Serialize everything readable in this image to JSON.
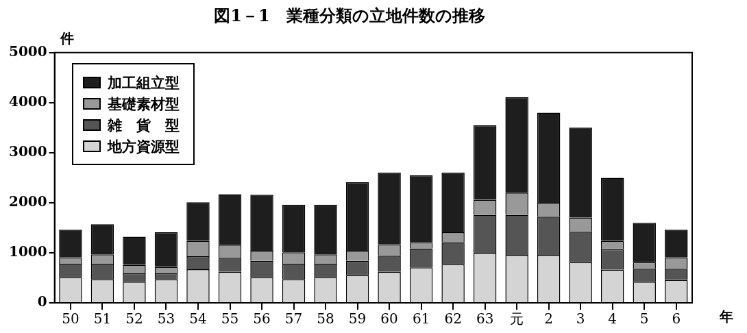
{
  "chart_data": {
    "type": "bar",
    "title": "図1－1　業種分類の立地件数の推移",
    "ylabel": "件",
    "xlabel": "年",
    "stacked": true,
    "legend": "top left",
    "categories": [
      "50",
      "51",
      "52",
      "53",
      "54",
      "55",
      "56",
      "57",
      "58",
      "59",
      "60",
      "61",
      "62",
      "63",
      "元",
      "2",
      "3",
      "4",
      "5",
      "6"
    ],
    "series": [
      {
        "name": "地方資源型",
        "color": "#d4d4d4",
        "values": [
          510,
          470,
          420,
          470,
          670,
          620,
          510,
          470,
          510,
          550,
          620,
          710,
          770,
          1000,
          960,
          960,
          810,
          660,
          420,
          460
        ]
      },
      {
        "name": "雑　貨　型",
        "color": "#555555",
        "values": [
          270,
          310,
          170,
          120,
          260,
          280,
          330,
          310,
          270,
          290,
          320,
          380,
          440,
          760,
          800,
          760,
          610,
          410,
          260,
          220
        ]
      },
      {
        "name": "基礎素材型",
        "color": "#999999",
        "values": [
          130,
          190,
          170,
          130,
          310,
          260,
          200,
          230,
          190,
          200,
          230,
          120,
          200,
          300,
          440,
          280,
          280,
          170,
          130,
          230
        ]
      },
      {
        "name": "加工組立型",
        "color": "#1e1e1e",
        "values": [
          550,
          600,
          560,
          690,
          770,
          1010,
          1120,
          950,
          990,
          1370,
          1430,
          1340,
          1190,
          1490,
          1910,
          1800,
          1800,
          1260,
          790,
          550
        ]
      }
    ],
    "ylim": [
      0,
      5000
    ],
    "yticks": [
      0,
      1000,
      2000,
      3000,
      4000,
      5000
    ]
  }
}
